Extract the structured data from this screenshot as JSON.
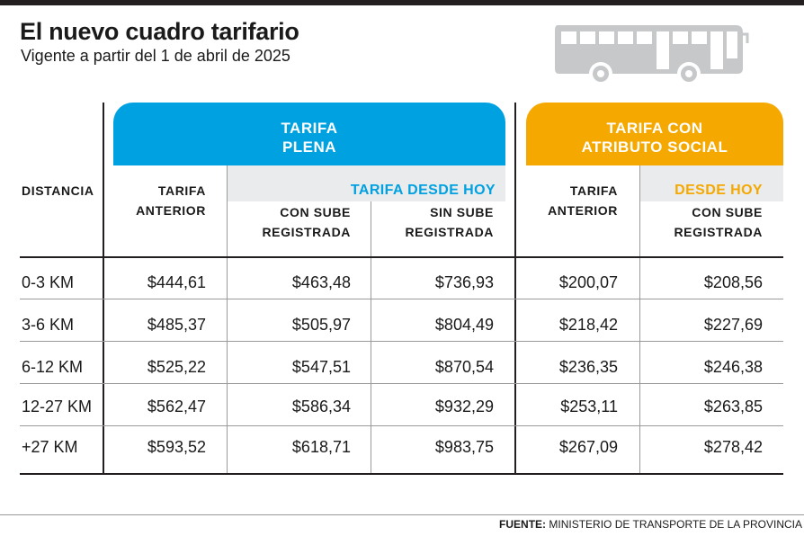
{
  "header": {
    "title": "El nuevo cuadro tarifario",
    "subtitle": "Vigente a partir del 1 de abril de 2025"
  },
  "icons": {
    "bus": "bus-icon"
  },
  "colors": {
    "blue": "#00a1e0",
    "orange": "#f5a800",
    "dark": "#231f20",
    "subband": "#e9ebed"
  },
  "groups": {
    "plena": {
      "line1": "TARIFA",
      "line2": "PLENA",
      "desde_hoy": "TARIFA DESDE HOY"
    },
    "social": {
      "line1": "TARIFA CON",
      "line2": "ATRIBUTO SOCIAL",
      "desde_hoy": "DESDE HOY"
    }
  },
  "columns": {
    "distancia": "DISTANCIA",
    "plena_anterior": {
      "line1": "TARIFA",
      "line2": "ANTERIOR"
    },
    "plena_con_sube": {
      "line1": "CON SUBE",
      "line2": "REGISTRADA"
    },
    "plena_sin_sube": {
      "line1": "SIN SUBE",
      "line2": "REGISTRADA"
    },
    "social_anterior": {
      "line1": "TARIFA",
      "line2": "ANTERIOR"
    },
    "social_con_sube": {
      "line1": "CON SUBE",
      "line2": "REGISTRADA"
    }
  },
  "rows": [
    {
      "distancia": "0-3 KM",
      "plena_anterior": "$444,61",
      "plena_con_sube": "$463,48",
      "plena_sin_sube": "$736,93",
      "social_anterior": "$200,07",
      "social_con_sube": "$208,56"
    },
    {
      "distancia": "3-6 KM",
      "plena_anterior": "$485,37",
      "plena_con_sube": "$505,97",
      "plena_sin_sube": "$804,49",
      "social_anterior": "$218,42",
      "social_con_sube": "$227,69"
    },
    {
      "distancia": "6-12 KM",
      "plena_anterior": "$525,22",
      "plena_con_sube": "$547,51",
      "plena_sin_sube": "$870,54",
      "social_anterior": "$236,35",
      "social_con_sube": "$246,38"
    },
    {
      "distancia": "12-27 KM",
      "plena_anterior": "$562,47",
      "plena_con_sube": "$586,34",
      "plena_sin_sube": "$932,29",
      "social_anterior": "$253,11",
      "social_con_sube": "$263,85"
    },
    {
      "distancia": "+27 KM",
      "plena_anterior": "$593,52",
      "plena_con_sube": "$618,71",
      "plena_sin_sube": "$983,75",
      "social_anterior": "$267,09",
      "social_con_sube": "$278,42"
    }
  ],
  "source": {
    "label": "FUENTE:",
    "text": "MINISTERIO DE TRANSPORTE DE LA PROVINCIA"
  }
}
